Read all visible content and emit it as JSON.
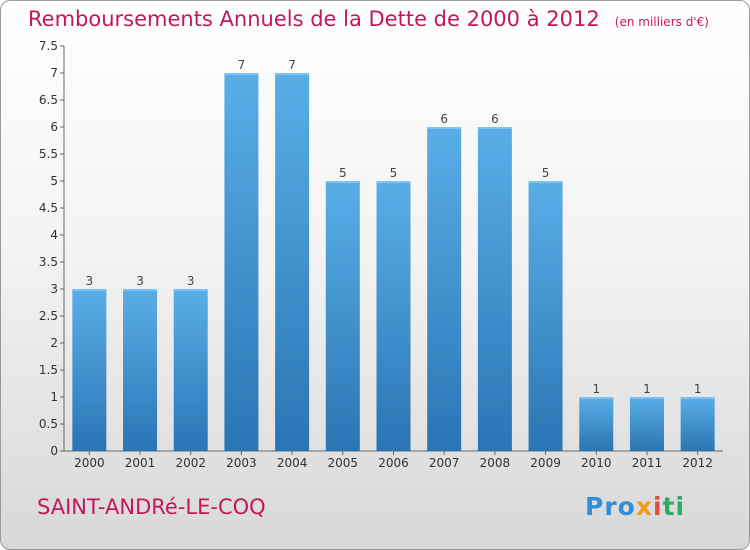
{
  "header": {
    "title": "Remboursements Annuels de la Dette de 2000 à 2012",
    "unit": "(en milliers d'€)"
  },
  "footer": {
    "place": "SAINT-ANDRé-LE-COQ",
    "logo": [
      "Pro",
      "x",
      "i",
      "ti"
    ]
  },
  "colors": {
    "title": "#c2185b",
    "bar_top": "#5aaee8",
    "bar_bottom": "#2a75b3"
  },
  "chart_data": {
    "type": "bar",
    "title": "Remboursements Annuels de la Dette de 2000 à 2012",
    "categories": [
      "2000",
      "2001",
      "2002",
      "2003",
      "2004",
      "2005",
      "2006",
      "2007",
      "2008",
      "2009",
      "2010",
      "2011",
      "2012"
    ],
    "values": [
      3,
      3,
      3,
      7,
      7,
      5,
      5,
      6,
      6,
      5,
      1,
      1,
      1
    ],
    "data_labels": [
      "3",
      "3",
      "3",
      "7",
      "7",
      "5",
      "5",
      "6",
      "6",
      "5",
      "1",
      "1",
      "1"
    ],
    "ylim": [
      0,
      7.5
    ],
    "y_ticks": [
      "0",
      "0.5",
      "1",
      "1.5",
      "2",
      "2.5",
      "3",
      "3.5",
      "4",
      "4.5",
      "5",
      "5.5",
      "6",
      "6.5",
      "7",
      "7.5"
    ],
    "grid": false,
    "legend": "none"
  }
}
